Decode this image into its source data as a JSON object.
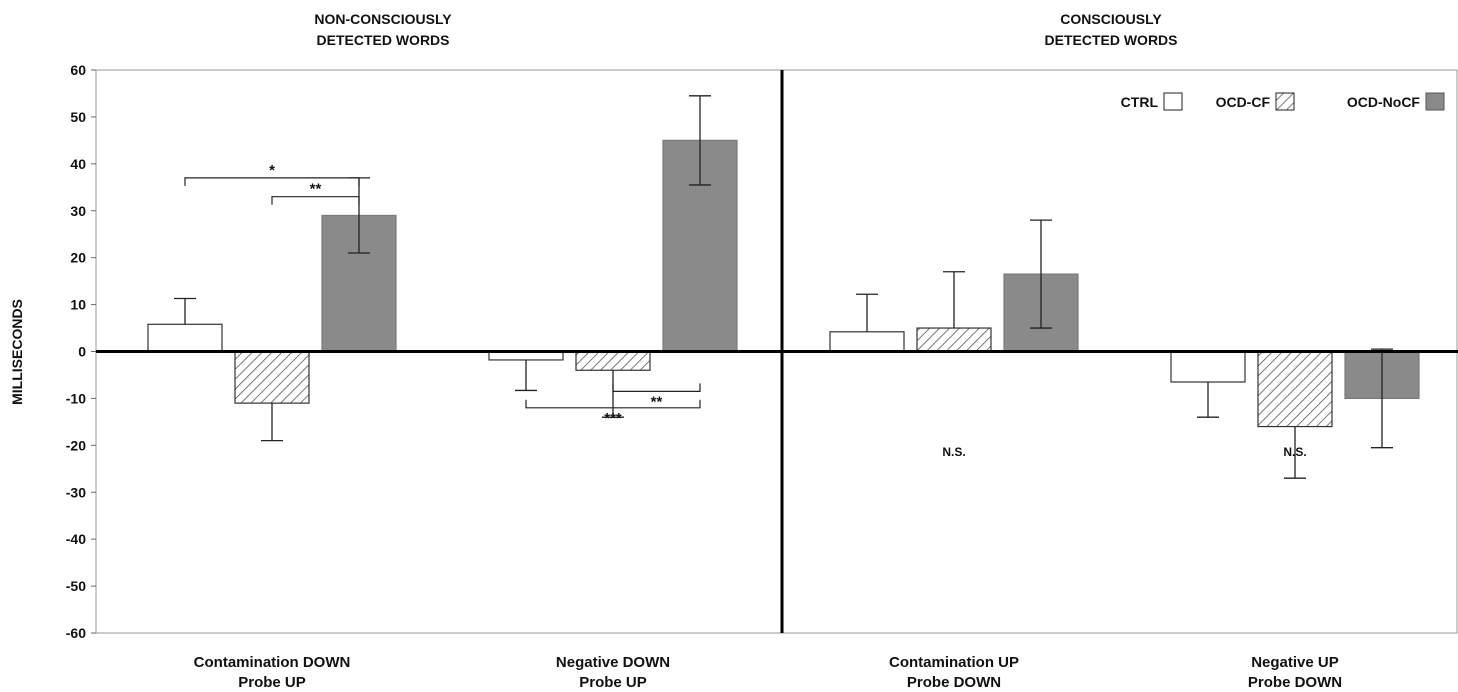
{
  "chart_data": {
    "type": "bar",
    "ylabel": "MILLISECONDS",
    "ylim": [
      -60,
      60
    ],
    "yticks": [
      60,
      50,
      40,
      30,
      20,
      10,
      0,
      -10,
      -20,
      -30,
      -40,
      -50,
      -60
    ],
    "panels": [
      {
        "title_line1": "NON-CONSCIOUSLY",
        "title_line2": "DETECTED WORDS"
      },
      {
        "title_line1": "CONSCIOUSLY",
        "title_line2": "DETECTED WORDS"
      }
    ],
    "categories": [
      {
        "line1": "Contamination DOWN",
        "line2": "Probe UP"
      },
      {
        "line1": "Negative DOWN",
        "line2": "Probe UP"
      },
      {
        "line1": "Contamination UP",
        "line2": "Probe DOWN"
      },
      {
        "line1": "Negative UP",
        "line2": "Probe DOWN"
      }
    ],
    "series": [
      {
        "name": "CTRL",
        "style": "empty",
        "values": [
          5.8,
          -1.8,
          4.2,
          -6.5
        ],
        "errors": [
          5.5,
          6.5,
          8,
          7.5
        ]
      },
      {
        "name": "OCD-CF",
        "style": "hatched",
        "values": [
          -11,
          -4,
          5,
          -16
        ],
        "errors": [
          8,
          10,
          12,
          11
        ]
      },
      {
        "name": "OCD-NoCF",
        "style": "filled",
        "values": [
          29,
          45,
          16.5,
          -10
        ],
        "errors": [
          8,
          9.5,
          11.5,
          10.5
        ]
      }
    ],
    "annotations": [
      {
        "label": "*",
        "category": 0,
        "from_series": 0,
        "to_series": 2,
        "y": 37
      },
      {
        "label": "**",
        "category": 0,
        "from_series": 1,
        "to_series": 2,
        "y": 33
      },
      {
        "label": "**",
        "category": 1,
        "from_series": 1,
        "to_series": 2,
        "y": -8.5
      },
      {
        "label": "***",
        "category": 1,
        "from_series": 0,
        "to_series": 2,
        "y": -12
      },
      {
        "label": "N.S.",
        "category": 2,
        "y": -21
      },
      {
        "label": "N.S.",
        "category": 3,
        "y": -21
      }
    ],
    "legend_position": "top-right",
    "colors": {
      "filled": "#8a8a8a",
      "hatch": "#555555",
      "axis": "#000000",
      "frame": "#9a9a9a"
    }
  }
}
